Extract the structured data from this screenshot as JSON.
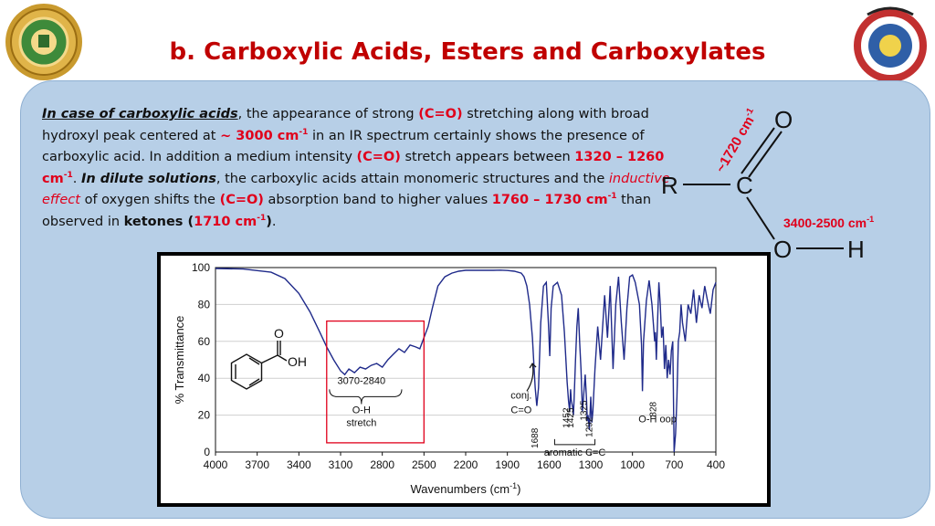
{
  "title": "b. Carboxylic Acids, Esters and Carboxylates",
  "paragraph": {
    "p1": "In case of carboxylic acids",
    "p2": ", the appearance of strong ",
    "p3": "(C=O)",
    "p4": " stretching along with broad hydroxyl peak centered at ",
    "p5": "~ 3000 cm",
    "p6": "-1",
    "p7": " in an IR spectrum certainly shows the presence of carboxylic acid. In addition a medium intensity ",
    "p8": "(C=O)",
    "p9": " stretch appears between ",
    "p10": "1320 – 1260 cm",
    "p11": "-1",
    "p12": ". ",
    "p13": "In dilute solutions",
    "p14": ", the carboxylic acids attain monomeric structures and the ",
    "p15": "inductive effect",
    "p16": " of oxygen shifts the ",
    "p17": "(C=O)",
    "p18": " absorption band to higher values ",
    "p19": "1760 – 1730 cm",
    "p20": "-1",
    "p21": " than observed in ",
    "p22": "ketones (",
    "p23": "1710 cm",
    "p24": "-1",
    "p25": ")",
    "p26": "."
  },
  "structure": {
    "atom_o_top": "O",
    "atom_r": "R",
    "atom_c": "C",
    "atom_o_bottom": "O",
    "atom_h": "H",
    "co_label": "~1720 cm",
    "co_label_sup": "-1",
    "oh_label": "3400-2500 cm",
    "oh_label_sup": "-1"
  },
  "chart_data": {
    "type": "line",
    "xlabel": "Wavenumbers (cm",
    "xlabel_sup": "-1",
    "xlabel_close": ")",
    "ylabel": "% Transmittance",
    "xlim": [
      4000,
      400
    ],
    "ylim": [
      0,
      100
    ],
    "x_ticks": [
      "4000",
      "3700",
      "3400",
      "3100",
      "2800",
      "2500",
      "2200",
      "1900",
      "1600",
      "1300",
      "1000",
      "700",
      "400"
    ],
    "y_ticks": [
      "0",
      "20",
      "40",
      "60",
      "80",
      "100"
    ],
    "series": [
      {
        "color": "#1f2a8a",
        "x": [
          4000,
          3800,
          3600,
          3500,
          3400,
          3320,
          3250,
          3200,
          3150,
          3100,
          3070,
          3040,
          3000,
          2960,
          2920,
          2880,
          2840,
          2800,
          2760,
          2720,
          2680,
          2640,
          2600,
          2560,
          2530,
          2500,
          2470,
          2440,
          2400,
          2350,
          2300,
          2250,
          2200,
          2100,
          2000,
          1950,
          1900,
          1850,
          1800,
          1780,
          1760,
          1740,
          1720,
          1700,
          1688,
          1676,
          1660,
          1640,
          1620,
          1605,
          1595,
          1585,
          1570,
          1540,
          1510,
          1490,
          1470,
          1460,
          1452,
          1445,
          1440,
          1430,
          1425,
          1420,
          1410,
          1400,
          1390,
          1380,
          1370,
          1360,
          1340,
          1330,
          1325,
          1320,
          1310,
          1300,
          1292,
          1285,
          1270,
          1250,
          1230,
          1200,
          1180,
          1160,
          1140,
          1120,
          1100,
          1080,
          1060,
          1040,
          1020,
          1000,
          980,
          950,
          935,
          928,
          920,
          900,
          880,
          860,
          840,
          835,
          828,
          820,
          810,
          800,
          790,
          780,
          770,
          760,
          750,
          740,
          730,
          720,
          710,
          700,
          690,
          680,
          670,
          660,
          650,
          640,
          620,
          600,
          580,
          560,
          540,
          520,
          500,
          480,
          460,
          440,
          420,
          400
        ],
        "y": [
          99.5,
          99.2,
          97.5,
          94,
          86,
          76,
          65,
          57,
          50,
          44,
          42,
          45,
          43,
          46,
          45,
          47,
          48,
          46,
          50,
          53,
          56,
          54,
          58,
          57,
          56,
          62,
          68,
          78,
          90,
          95,
          97,
          98,
          98.5,
          98.5,
          98.5,
          98.6,
          98.4,
          98,
          97,
          95,
          90,
          80,
          62,
          35,
          25,
          35,
          70,
          90,
          92,
          70,
          52,
          78,
          90,
          92,
          85,
          65,
          38,
          28,
          22,
          34,
          28,
          24,
          20,
          28,
          50,
          68,
          78,
          60,
          45,
          22,
          42,
          28,
          17,
          20,
          12,
          30,
          16,
          22,
          45,
          68,
          50,
          85,
          62,
          90,
          45,
          80,
          95,
          70,
          50,
          78,
          95,
          96,
          92,
          80,
          58,
          33,
          60,
          82,
          93,
          80,
          60,
          65,
          50,
          70,
          92,
          80,
          62,
          68,
          45,
          58,
          40,
          50,
          42,
          55,
          60,
          0,
          10,
          30,
          60,
          65,
          80,
          70,
          60,
          80,
          75,
          88,
          70,
          85,
          78,
          90,
          82,
          75,
          88,
          92
        ]
      }
    ],
    "box": {
      "x1": 3200,
      "x2": 2500,
      "y1": 5,
      "y2": 71
    },
    "annotations": {
      "range_label": "3070-2840",
      "oh_label": "O-H",
      "oh_label2": "stretch",
      "conj_label": "conj.",
      "conj_label2": "C=O",
      "peak_1688": "1688",
      "peak_1452": "1452",
      "peak_1425": "1425",
      "peak_1325": "1325",
      "peak_1292": "1292",
      "peak_828": "828",
      "oop_label": "O-H oop",
      "aromatic_label": "aromatic C=C"
    },
    "inset_molecule": {
      "o_label": "O",
      "oh_label": "OH"
    }
  }
}
